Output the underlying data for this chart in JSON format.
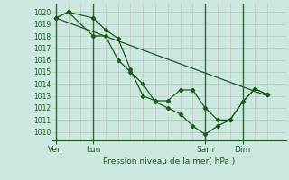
{
  "bg_color": "#cce8e0",
  "line_color": "#1a5c1a",
  "grid_color_h": "#aaccbb",
  "grid_color_v_minor": "#ddbbbb",
  "grid_color_v_major": "#336633",
  "text_color": "#1a5c1a",
  "xlabel_text": "Pression niveau de la mer( hPa )",
  "xtick_labels": [
    "Ven",
    "Lun",
    "Sam",
    "Dim"
  ],
  "xtick_positions": [
    0,
    3,
    12,
    15
  ],
  "ylim": [
    1009.3,
    1020.7
  ],
  "yticks": [
    1010,
    1011,
    1012,
    1013,
    1014,
    1015,
    1016,
    1017,
    1018,
    1019,
    1020
  ],
  "major_vlines": [
    0,
    3,
    12,
    15
  ],
  "xlim": [
    -0.3,
    18.5
  ],
  "line1_x": [
    0.0,
    1.0,
    3.0,
    4.0,
    5.0,
    6.0,
    7.0,
    8.0,
    9.0,
    10.0,
    11.0,
    12.0,
    13.0,
    14.0,
    15.0,
    16.0,
    17.0
  ],
  "line1_y": [
    1019.5,
    1020.0,
    1019.5,
    1018.5,
    1017.8,
    1015.2,
    1013.0,
    1012.6,
    1012.6,
    1013.5,
    1013.5,
    1012.0,
    1011.0,
    1011.0,
    1012.5,
    1013.6,
    1013.1
  ],
  "line2_x": [
    0.0,
    1.0,
    3.0,
    4.0,
    5.0,
    6.0,
    7.0,
    8.0,
    9.0,
    10.0,
    11.0,
    12.0,
    13.0,
    14.0,
    15.0,
    16.0,
    17.0
  ],
  "line2_y": [
    1019.5,
    1020.0,
    1018.0,
    1018.0,
    1016.0,
    1015.0,
    1014.0,
    1012.5,
    1012.0,
    1011.5,
    1010.5,
    1009.8,
    1010.5,
    1011.0,
    1012.5,
    1013.6,
    1013.1
  ],
  "line3_x": [
    0.0,
    17.0
  ],
  "line3_y": [
    1019.5,
    1013.0
  ]
}
